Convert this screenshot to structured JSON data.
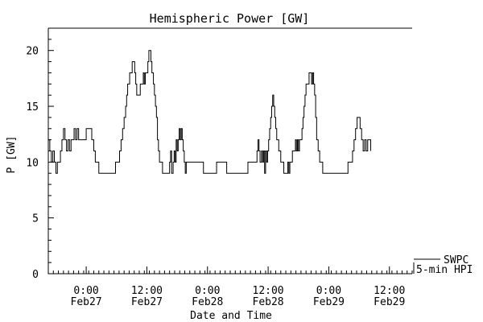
{
  "chart_data": {
    "type": "line",
    "title": "Hemispheric Power [GW]",
    "xlabel": "Date and Time",
    "ylabel": "P [GW]",
    "ylim": [
      0,
      22
    ],
    "yticks": [
      0,
      5,
      10,
      15,
      20
    ],
    "x_start": "2016-02-26 16:30",
    "x_tick_labels": [
      {
        "time": "0:00",
        "date": "Feb27",
        "hours": 7.5
      },
      {
        "time": "12:00",
        "date": "Feb27",
        "hours": 19.5
      },
      {
        "time": "0:00",
        "date": "Feb28",
        "hours": 31.5
      },
      {
        "time": "12:00",
        "date": "Feb28",
        "hours": 43.5
      },
      {
        "time": "0:00",
        "date": "Feb29",
        "hours": 55.5
      },
      {
        "time": "12:00",
        "date": "Feb29",
        "hours": 67.5
      }
    ],
    "xlim_hours": [
      0,
      72
    ],
    "legend": {
      "placement": "bottom-right",
      "entries": [
        "SWPC",
        "5-min HPI"
      ]
    },
    "series": [
      {
        "name": "SWPC",
        "points": [
          [
            0,
            12
          ],
          [
            0.3,
            11
          ],
          [
            0.6,
            10
          ],
          [
            0.9,
            11
          ],
          [
            1.2,
            10
          ],
          [
            1.5,
            9
          ],
          [
            1.8,
            10
          ],
          [
            2.1,
            10
          ],
          [
            2.4,
            11
          ],
          [
            2.7,
            12
          ],
          [
            3.0,
            13
          ],
          [
            3.3,
            12
          ],
          [
            3.6,
            11
          ],
          [
            3.9,
            12
          ],
          [
            4.2,
            11
          ],
          [
            4.5,
            12
          ],
          [
            4.8,
            12
          ],
          [
            5.1,
            13
          ],
          [
            5.4,
            12
          ],
          [
            5.7,
            13
          ],
          [
            6.0,
            12
          ],
          [
            6.3,
            12
          ],
          [
            6.6,
            12
          ],
          [
            6.9,
            12
          ],
          [
            7.2,
            12
          ],
          [
            7.5,
            13
          ],
          [
            8.1,
            13
          ],
          [
            8.6,
            12
          ],
          [
            9.0,
            11
          ],
          [
            9.3,
            10
          ],
          [
            9.8,
            10
          ],
          [
            10.0,
            9
          ],
          [
            13.0,
            9
          ],
          [
            13.3,
            10
          ],
          [
            13.8,
            10
          ],
          [
            14.1,
            11
          ],
          [
            14.4,
            12
          ],
          [
            14.7,
            13
          ],
          [
            15.0,
            14
          ],
          [
            15.3,
            15
          ],
          [
            15.5,
            16
          ],
          [
            15.7,
            17
          ],
          [
            15.9,
            17
          ],
          [
            16.1,
            18
          ],
          [
            16.4,
            18
          ],
          [
            16.6,
            19
          ],
          [
            16.9,
            19
          ],
          [
            17.1,
            18
          ],
          [
            17.3,
            17
          ],
          [
            17.5,
            16
          ],
          [
            18.0,
            16
          ],
          [
            18.2,
            17
          ],
          [
            18.6,
            17
          ],
          [
            18.8,
            18
          ],
          [
            19.0,
            17
          ],
          [
            19.2,
            18
          ],
          [
            19.5,
            18
          ],
          [
            19.7,
            19
          ],
          [
            19.9,
            20
          ],
          [
            20.1,
            20
          ],
          [
            20.3,
            19
          ],
          [
            20.5,
            18
          ],
          [
            20.8,
            17
          ],
          [
            21.0,
            16
          ],
          [
            21.2,
            15
          ],
          [
            21.4,
            14
          ],
          [
            21.6,
            12
          ],
          [
            21.8,
            11
          ],
          [
            22.0,
            10
          ],
          [
            22.3,
            10
          ],
          [
            22.6,
            9
          ],
          [
            23.5,
            9
          ],
          [
            23.8,
            9
          ],
          [
            24.0,
            10
          ],
          [
            24.2,
            11
          ],
          [
            24.4,
            9
          ],
          [
            24.7,
            10
          ],
          [
            24.9,
            11
          ],
          [
            25.1,
            10
          ],
          [
            25.3,
            12
          ],
          [
            25.5,
            11
          ],
          [
            25.7,
            12
          ],
          [
            25.9,
            13
          ],
          [
            26.1,
            12
          ],
          [
            26.3,
            13
          ],
          [
            26.5,
            12
          ],
          [
            26.7,
            11
          ],
          [
            26.9,
            10
          ],
          [
            27.1,
            9
          ],
          [
            27.3,
            10
          ],
          [
            27.5,
            10
          ],
          [
            30.5,
            10
          ],
          [
            30.7,
            9
          ],
          [
            33.0,
            9
          ],
          [
            33.3,
            10
          ],
          [
            35.0,
            10
          ],
          [
            35.3,
            9
          ],
          [
            39.3,
            9
          ],
          [
            39.5,
            10
          ],
          [
            41.0,
            10
          ],
          [
            41.3,
            11
          ],
          [
            41.5,
            12
          ],
          [
            41.7,
            11
          ],
          [
            41.9,
            10
          ],
          [
            42.2,
            11
          ],
          [
            42.4,
            10
          ],
          [
            42.6,
            11
          ],
          [
            42.8,
            9
          ],
          [
            43.0,
            11
          ],
          [
            43.2,
            10
          ],
          [
            43.4,
            11
          ],
          [
            43.6,
            12
          ],
          [
            43.8,
            13
          ],
          [
            44.0,
            14
          ],
          [
            44.2,
            15
          ],
          [
            44.4,
            16
          ],
          [
            44.6,
            15
          ],
          [
            44.8,
            14
          ],
          [
            45.0,
            13
          ],
          [
            45.2,
            12
          ],
          [
            45.4,
            12
          ],
          [
            45.6,
            11
          ],
          [
            45.8,
            11
          ],
          [
            46.0,
            10
          ],
          [
            46.4,
            10
          ],
          [
            46.6,
            9
          ],
          [
            47.2,
            9
          ],
          [
            47.4,
            10
          ],
          [
            47.6,
            9
          ],
          [
            47.8,
            10
          ],
          [
            48.0,
            10
          ],
          [
            48.3,
            11
          ],
          [
            48.6,
            11
          ],
          [
            48.9,
            12
          ],
          [
            49.1,
            11
          ],
          [
            49.3,
            12
          ],
          [
            49.5,
            11
          ],
          [
            49.7,
            12
          ],
          [
            49.9,
            12
          ],
          [
            50.2,
            13
          ],
          [
            50.4,
            14
          ],
          [
            50.6,
            15
          ],
          [
            50.8,
            16
          ],
          [
            51.0,
            17
          ],
          [
            51.4,
            17
          ],
          [
            51.6,
            18
          ],
          [
            51.9,
            18
          ],
          [
            52.1,
            17
          ],
          [
            52.3,
            18
          ],
          [
            52.5,
            17
          ],
          [
            52.7,
            16
          ],
          [
            52.9,
            14
          ],
          [
            53.1,
            12
          ],
          [
            53.4,
            11
          ],
          [
            53.7,
            10
          ],
          [
            54.0,
            10
          ],
          [
            54.3,
            9
          ],
          [
            59.0,
            9
          ],
          [
            59.3,
            10
          ],
          [
            59.8,
            10
          ],
          [
            60.2,
            11
          ],
          [
            60.5,
            12
          ],
          [
            60.8,
            13
          ],
          [
            61.1,
            14
          ],
          [
            61.4,
            14
          ],
          [
            61.7,
            13
          ],
          [
            62.0,
            12
          ],
          [
            62.3,
            11
          ],
          [
            62.6,
            12
          ],
          [
            62.9,
            11
          ],
          [
            63.2,
            12
          ],
          [
            63.5,
            12
          ],
          [
            63.8,
            11
          ]
        ]
      }
    ]
  }
}
